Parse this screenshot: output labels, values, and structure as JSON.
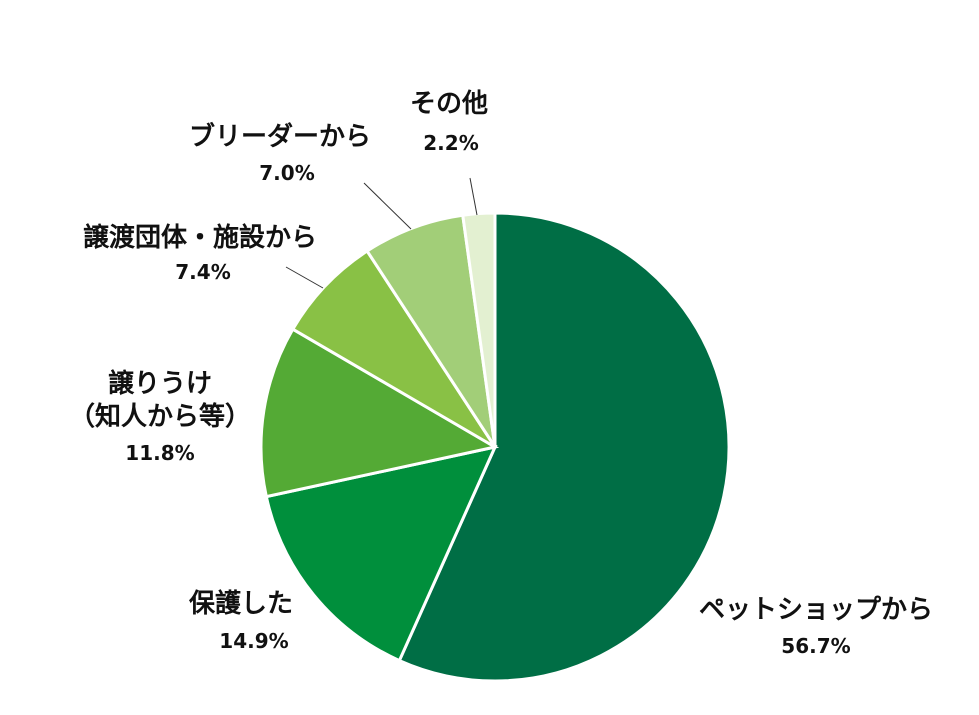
{
  "chart_data": {
    "type": "pie",
    "title": "",
    "start": "12 o'clock",
    "direction": "clockwise",
    "slices": [
      {
        "label_lines": [
          "ペットショップから"
        ],
        "value": 56.7,
        "value_label": "56.7%",
        "color": "#006E45"
      },
      {
        "label_lines": [
          "保護した"
        ],
        "value": 14.9,
        "value_label": "14.9%",
        "color": "#008F3C"
      },
      {
        "label_lines": [
          "譲りうけ",
          "（知人から等）"
        ],
        "value": 11.8,
        "value_label": "11.8%",
        "color": "#54AA35"
      },
      {
        "label_lines": [
          "譲渡団体・施設から"
        ],
        "value": 7.4,
        "value_label": "7.4%",
        "color": "#89C145"
      },
      {
        "label_lines": [
          "ブリーダーから"
        ],
        "value": 7.0,
        "value_label": "7.0%",
        "color": "#A2CE78"
      },
      {
        "label_lines": [
          "その他"
        ],
        "value": 2.2,
        "value_label": "2.2%",
        "color": "#E3F0D1"
      }
    ]
  }
}
